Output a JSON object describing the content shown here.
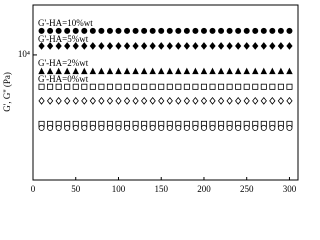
{
  "chart_data": {
    "type": "scatter",
    "ylabel": "G', G'' (Pa)",
    "yscale": "log",
    "xlim": [
      0,
      310
    ],
    "xticks": [
      0,
      50,
      100,
      150,
      200,
      250,
      300
    ],
    "ylim": [
      560,
      31600
    ],
    "yticks": [
      {
        "value": 10000,
        "label": "10⁴"
      }
    ],
    "annotations": [
      "G'-HA=10%wt",
      "G'-HA=5%wt",
      "G'-HA=2%wt",
      "G'-HA=0%wt"
    ],
    "x": [
      10,
      20,
      30,
      40,
      50,
      60,
      70,
      80,
      90,
      100,
      110,
      120,
      130,
      140,
      150,
      160,
      170,
      180,
      190,
      200,
      210,
      220,
      230,
      240,
      250,
      260,
      270,
      280,
      290,
      300
    ],
    "series": [
      {
        "color": "#000000",
        "marker": "circle",
        "filled": true,
        "values": [
          17400,
          17400,
          17400,
          17400,
          17400,
          17400,
          17400,
          17400,
          17400,
          17400,
          17400,
          17400,
          17400,
          17400,
          17400,
          17400,
          17400,
          17400,
          17400,
          17400,
          17400,
          17400,
          17400,
          17400,
          17400,
          17400,
          17400,
          17400,
          17400,
          17400
        ]
      },
      {
        "color": "#000000",
        "marker": "diamond",
        "filled": true,
        "values": [
          12300,
          12300,
          12300,
          12300,
          12300,
          12300,
          12300,
          12300,
          12300,
          12300,
          12300,
          12300,
          12300,
          12300,
          12300,
          12300,
          12300,
          12300,
          12300,
          12300,
          12300,
          12300,
          12300,
          12300,
          12300,
          12300,
          12300,
          12300,
          12300,
          12300
        ]
      },
      {
        "color": "#000000",
        "marker": "triangle",
        "filled": true,
        "values": [
          6800,
          6800,
          6800,
          6800,
          6800,
          6800,
          6800,
          6800,
          6800,
          6800,
          6800,
          6800,
          6800,
          6800,
          6800,
          6800,
          6800,
          6800,
          6800,
          6800,
          6800,
          6800,
          6800,
          6800,
          6800,
          6800,
          6800,
          6800,
          6800,
          6800
        ]
      },
      {
        "color": "#000000",
        "marker": "square",
        "filled": false,
        "values": [
          4800,
          4800,
          4800,
          4800,
          4800,
          4800,
          4800,
          4800,
          4800,
          4800,
          4800,
          4800,
          4800,
          4800,
          4800,
          4800,
          4800,
          4800,
          4800,
          4800,
          4800,
          4800,
          4800,
          4800,
          4800,
          4800,
          4800,
          4800,
          4800,
          4800
        ]
      },
      {
        "color": "#000000",
        "marker": "diamond",
        "filled": false,
        "values": [
          3470,
          3470,
          3470,
          3470,
          3470,
          3470,
          3470,
          3470,
          3470,
          3470,
          3470,
          3470,
          3470,
          3470,
          3470,
          3470,
          3470,
          3470,
          3470,
          3470,
          3470,
          3470,
          3470,
          3470,
          3470,
          3470,
          3470,
          3470,
          3470,
          3470
        ]
      },
      {
        "color": "#000000",
        "marker": "square",
        "filled": false,
        "values": [
          2040,
          2040,
          2040,
          2040,
          2040,
          2040,
          2040,
          2040,
          2040,
          2040,
          2040,
          2040,
          2040,
          2040,
          2040,
          2040,
          2040,
          2040,
          2040,
          2040,
          2040,
          2040,
          2040,
          2040,
          2040,
          2040,
          2040,
          2040,
          2040,
          2040
        ]
      },
      {
        "color": "#000000",
        "marker": "circle",
        "filled": false,
        "values": [
          1860,
          1860,
          1860,
          1860,
          1860,
          1860,
          1860,
          1860,
          1860,
          1860,
          1860,
          1860,
          1860,
          1860,
          1860,
          1860,
          1860,
          1860,
          1860,
          1860,
          1860,
          1860,
          1860,
          1860,
          1860,
          1860,
          1860,
          1860,
          1860,
          1860
        ]
      }
    ]
  }
}
